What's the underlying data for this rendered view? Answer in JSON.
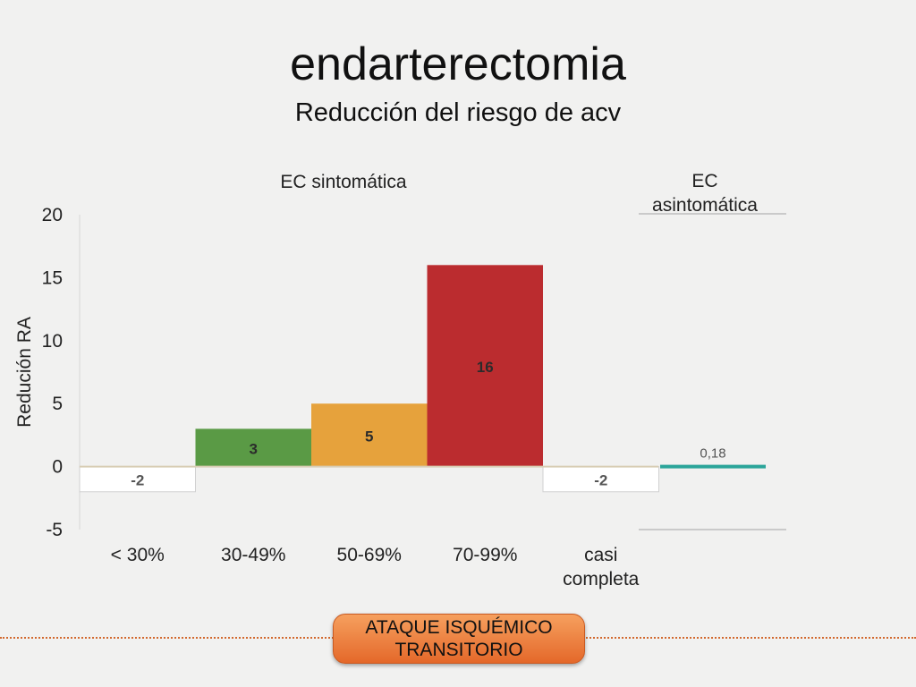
{
  "slide": {
    "title": "endarterectomia",
    "subtitle": "Reducción del riesgo de acv",
    "footer_line1": "ATAQUE ISQUÉMICO",
    "footer_line2": "TRANSITORIO"
  },
  "groups": {
    "symptomatic_label": "EC sintomática",
    "asymptomatic_line1": "EC",
    "asymptomatic_line2": "asintomática"
  },
  "chart_data": {
    "type": "bar",
    "title": "",
    "xlabel": "",
    "ylabel": "Redución RA",
    "ylim": [
      -5,
      20
    ],
    "yticks": [
      -5,
      0,
      5,
      10,
      15,
      20
    ],
    "grid": false,
    "legend": "none",
    "categories": [
      "< 30%",
      "30-49%",
      "50-69%",
      "70-99%",
      "casi completa",
      ""
    ],
    "values": [
      -2,
      3,
      5,
      16,
      -2,
      0.18
    ],
    "data_labels": [
      "-2",
      "3",
      "5",
      "16",
      "-2",
      "0,18"
    ],
    "colors": [
      "#ffffff",
      "#5a9a45",
      "#e6a23c",
      "#bb2c2f",
      "#ffffff",
      "#2ba59a"
    ]
  }
}
